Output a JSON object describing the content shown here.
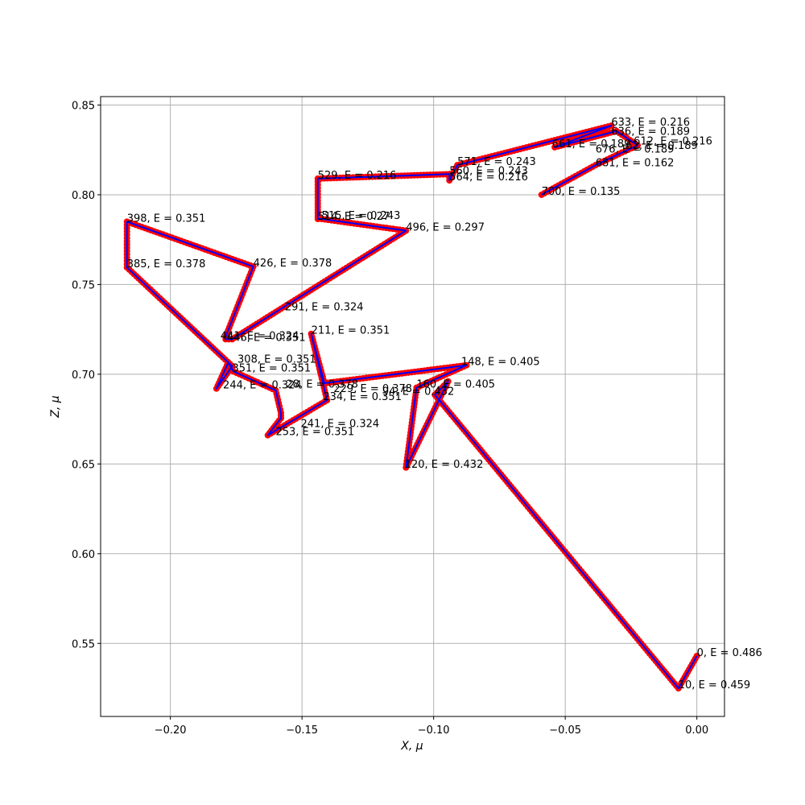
{
  "chart_data": {
    "type": "line",
    "xlabel": "X, μ",
    "ylabel": "Z, μ",
    "xlim": [
      -0.2265,
      0.0105
    ],
    "ylim": [
      0.5093,
      0.8547
    ],
    "grid": true,
    "x_ticks": [
      -0.2,
      -0.15,
      -0.1,
      -0.05,
      0.0
    ],
    "x_tick_labels": [
      "−0.20",
      "−0.15",
      "−0.10",
      "−0.05",
      "0.00"
    ],
    "y_ticks": [
      0.55,
      0.6,
      0.65,
      0.7,
      0.75,
      0.8,
      0.85
    ],
    "y_tick_labels": [
      "0.55",
      "0.60",
      "0.65",
      "0.70",
      "0.75",
      "0.80",
      "0.85"
    ],
    "colors": {
      "marker": "#ff0000",
      "line": "#0000ff",
      "grid": "#b0b0b0"
    },
    "series": [
      {
        "x": [
          0.0,
          -0.007,
          -0.0995,
          -0.0945,
          -0.1105,
          -0.1065,
          -0.0875,
          -0.1415,
          -0.1465,
          -0.1405,
          -0.163,
          -0.158,
          -0.158,
          -0.16,
          -0.176,
          -0.178,
          -0.1825,
          -0.1765,
          -0.2165,
          -0.2165,
          -0.1685,
          -0.179,
          -0.179,
          -0.1765,
          -0.1105,
          -0.1425,
          -0.144,
          -0.144,
          -0.144,
          -0.094,
          -0.094,
          -0.091,
          -0.0325,
          -0.054,
          -0.0305,
          -0.0225,
          -0.0285,
          -0.0385,
          -0.059
        ],
        "y": [
          0.543,
          0.525,
          0.6885,
          0.696,
          0.648,
          0.6925,
          0.705,
          0.695,
          0.7225,
          0.6855,
          0.666,
          0.6755,
          0.6785,
          0.691,
          0.7015,
          0.7065,
          0.692,
          0.7045,
          0.7595,
          0.785,
          0.76,
          0.721,
          0.7195,
          0.7195,
          0.78,
          0.7865,
          0.7865,
          0.788,
          0.809,
          0.8115,
          0.808,
          0.8165,
          0.8385,
          0.8265,
          0.8355,
          0.8275,
          0.8235,
          0.8165,
          0.8
        ]
      }
    ],
    "annotations": [
      {
        "x": 0.0,
        "y": 0.543,
        "text": "0, E = 0.486"
      },
      {
        "x": -0.007,
        "y": 0.525,
        "text": "10, E = 0.459"
      },
      {
        "x": -0.1195,
        "y": 0.6885,
        "text": "94, E = 0.432"
      },
      {
        "x": -0.111,
        "y": 0.648,
        "text": "120, E = 0.432"
      },
      {
        "x": -0.0895,
        "y": 0.705,
        "text": "148, E = 0.405"
      },
      {
        "x": -0.1065,
        "y": 0.6925,
        "text": "160, E = 0.405"
      },
      {
        "x": -0.1465,
        "y": 0.7225,
        "text": "211, E = 0.351"
      },
      {
        "x": -0.138,
        "y": 0.69,
        "text": "229, E = 0.378"
      },
      {
        "x": -0.142,
        "y": 0.6855,
        "text": "234, E = 0.351"
      },
      {
        "x": -0.1505,
        "y": 0.6705,
        "text": "241, E = 0.324"
      },
      {
        "x": -0.16,
        "y": 0.666,
        "text": "253, E = 0.351"
      },
      {
        "x": -0.18,
        "y": 0.692,
        "text": "244, E = 0.324"
      },
      {
        "x": -0.156,
        "y": 0.6925,
        "text": "28, E = 0.378"
      },
      {
        "x": -0.1565,
        "y": 0.7355,
        "text": "291, E = 0.324"
      },
      {
        "x": -0.1745,
        "y": 0.7065,
        "text": "308, E = 0.351"
      },
      {
        "x": -0.1765,
        "y": 0.7015,
        "text": "351, E = 0.351"
      },
      {
        "x": -0.181,
        "y": 0.7195,
        "text": "441, E = 0.324"
      },
      {
        "x": -0.1785,
        "y": 0.7185,
        "text": "446, E = 0.351"
      },
      {
        "x": -0.2165,
        "y": 0.785,
        "text": "398, E = 0.351"
      },
      {
        "x": -0.2165,
        "y": 0.7595,
        "text": "385, E = 0.378"
      },
      {
        "x": -0.1685,
        "y": 0.76,
        "text": "426, E = 0.378"
      },
      {
        "x": -0.1105,
        "y": 0.78,
        "text": "496, E = 0.297"
      },
      {
        "x": -0.1425,
        "y": 0.7865,
        "text": "515, E = 0.243"
      },
      {
        "x": -0.144,
        "y": 0.786,
        "text": "514, E = 0.27"
      },
      {
        "x": -0.144,
        "y": 0.809,
        "text": "529, E = 0.216"
      },
      {
        "x": -0.094,
        "y": 0.8115,
        "text": "560, E = 0.243"
      },
      {
        "x": -0.094,
        "y": 0.808,
        "text": "564, E = 0.216"
      },
      {
        "x": -0.091,
        "y": 0.8165,
        "text": "571, E = 0.243"
      },
      {
        "x": -0.0325,
        "y": 0.8385,
        "text": "633, E = 0.216"
      },
      {
        "x": -0.0325,
        "y": 0.8335,
        "text": "636, E = 0.189"
      },
      {
        "x": -0.024,
        "y": 0.828,
        "text": "612, E = 0.216"
      },
      {
        "x": -0.055,
        "y": 0.8265,
        "text": "661, E = 0.189"
      },
      {
        "x": -0.027,
        "y": 0.8255,
        "text": "62, E = 0.189"
      },
      {
        "x": -0.0385,
        "y": 0.8235,
        "text": "676, E = 0.189"
      },
      {
        "x": -0.0385,
        "y": 0.816,
        "text": "681, E = 0.162"
      },
      {
        "x": -0.059,
        "y": 0.8,
        "text": "700, E = 0.135"
      }
    ]
  }
}
